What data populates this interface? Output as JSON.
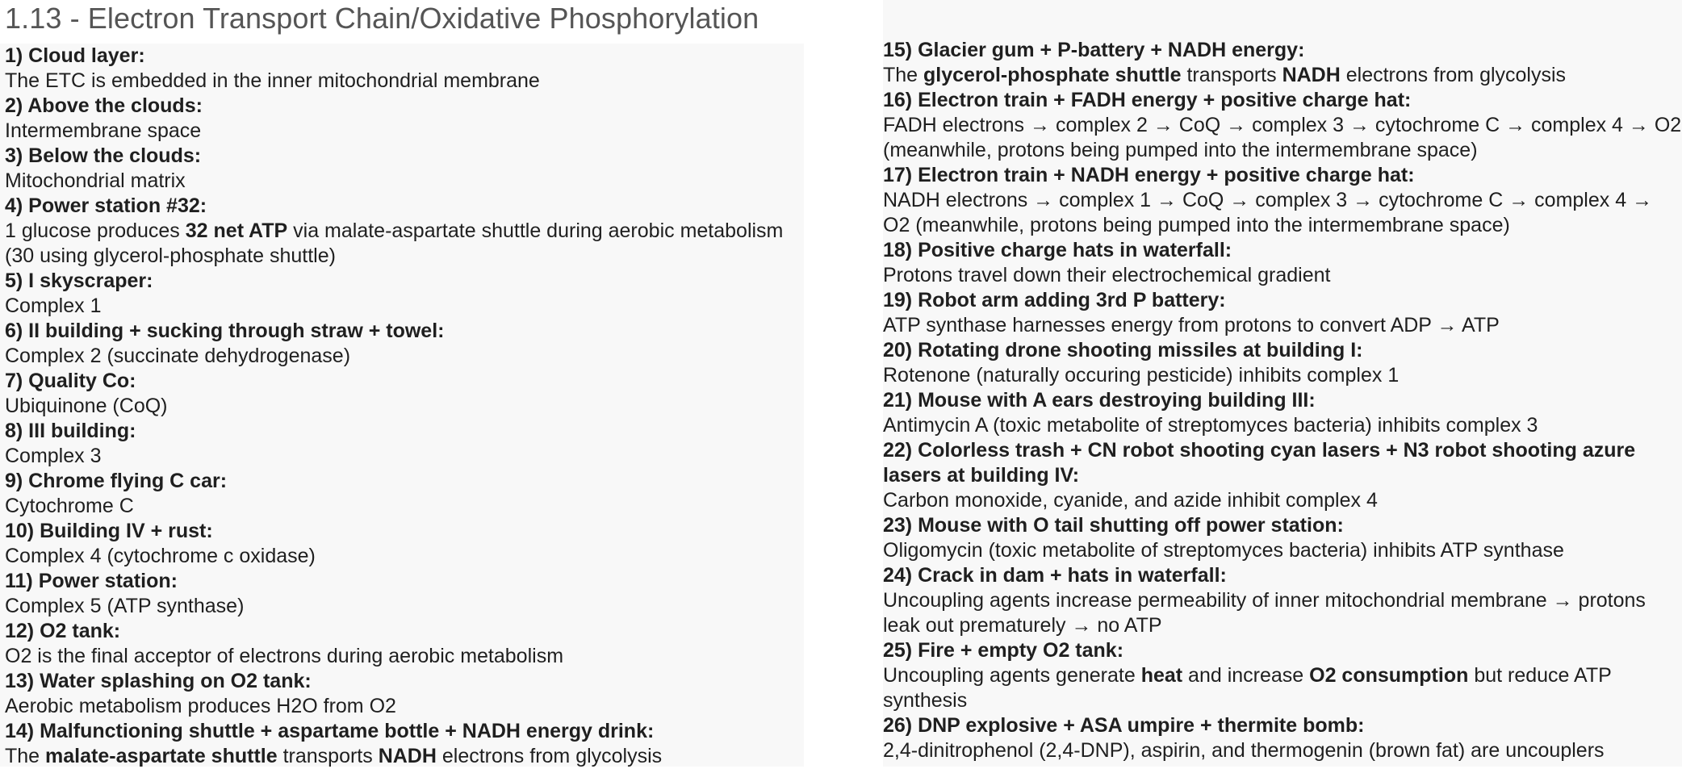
{
  "title": "1.13 - Electron Transport Chain/Oxidative Phosphorylation",
  "left_items": [
    {
      "head": "1) Cloud layer:",
      "body": [
        {
          "t": "The ETC is embedded in the inner mitochondrial membrane"
        }
      ]
    },
    {
      "head": "2) Above the clouds:",
      "body": [
        {
          "t": "Intermembrane space"
        }
      ]
    },
    {
      "head": "3) Below the clouds:",
      "body": [
        {
          "t": "Mitochondrial matrix"
        }
      ]
    },
    {
      "head": "4) Power station #32:",
      "body": [
        {
          "t": "1 glucose produces "
        },
        {
          "t": "32 net ATP",
          "b": true
        },
        {
          "t": " via malate-aspartate shuttle during aerobic metabolism (30 using glycerol-phosphate shuttle)"
        }
      ]
    },
    {
      "head": "5) I skyscraper:",
      "body": [
        {
          "t": "Complex 1"
        }
      ]
    },
    {
      "head": "6) II building + sucking through straw + towel:",
      "body": [
        {
          "t": "Complex 2 (succinate dehydrogenase)"
        }
      ]
    },
    {
      "head": "7) Quality Co:",
      "body": [
        {
          "t": "Ubiquinone (CoQ)"
        }
      ]
    },
    {
      "head": "8) III building:",
      "body": [
        {
          "t": "Complex 3"
        }
      ]
    },
    {
      "head": "9) Chrome flying C car:",
      "body": [
        {
          "t": "Cytochrome C"
        }
      ]
    },
    {
      "head": "10) Building IV + rust:",
      "body": [
        {
          "t": "Complex 4 (cytochrome c oxidase)"
        }
      ]
    },
    {
      "head": "11) Power station:",
      "body": [
        {
          "t": "Complex 5 (ATP synthase)"
        }
      ]
    },
    {
      "head": "12) O2 tank:",
      "body": [
        {
          "t": "O2 is the final acceptor of electrons during aerobic metabolism"
        }
      ]
    },
    {
      "head": "13) Water splashing on O2 tank:",
      "body": [
        {
          "t": "Aerobic metabolism produces H2O from O2"
        }
      ]
    },
    {
      "head": "14) Malfunctioning shuttle + aspartame bottle + NADH energy drink:",
      "body": [
        {
          "t": "The "
        },
        {
          "t": "malate-aspartate shuttle",
          "b": true
        },
        {
          "t": " transports "
        },
        {
          "t": "NADH",
          "b": true
        },
        {
          "t": " electrons from glycolysis"
        }
      ]
    }
  ],
  "right_items": [
    {
      "head": "15) Glacier gum + P-battery + NADH energy:",
      "body": [
        {
          "t": "The "
        },
        {
          "t": "glycerol-phosphate shuttle",
          "b": true
        },
        {
          "t": " transports "
        },
        {
          "t": "NADH",
          "b": true
        },
        {
          "t": " electrons from glycolysis"
        }
      ]
    },
    {
      "head": "16) Electron train + FADH energy + positive charge hat:",
      "body": [
        {
          "t": "FADH electrons → complex 2 → CoQ → complex 3 → cytochrome C → complex 4 → O2 (meanwhile, protons being pumped into the intermembrane space)"
        }
      ]
    },
    {
      "head": "17) Electron train + NADH energy + positive charge hat:",
      "body": [
        {
          "t": "NADH electrons → complex 1 → CoQ → complex 3 → cytochrome C → complex 4 → O2 (meanwhile, protons being pumped into the intermembrane space)"
        }
      ]
    },
    {
      "head": "18) Positive charge hats in waterfall:",
      "body": [
        {
          "t": "Protons travel down their electrochemical gradient"
        }
      ]
    },
    {
      "head": "19) Robot arm adding 3rd P battery:",
      "body": [
        {
          "t": "ATP synthase harnesses energy from protons to convert ADP → ATP"
        }
      ]
    },
    {
      "head": "20) Rotating drone shooting missiles at building I:",
      "body": [
        {
          "t": "Rotenone (naturally occuring pesticide) inhibits complex 1"
        }
      ]
    },
    {
      "head": "21) Mouse with A ears destroying building III:",
      "body": [
        {
          "t": "Antimycin A (toxic metabolite of streptomyces bacteria) inhibits complex 3"
        }
      ]
    },
    {
      "head": "22) Colorless trash + CN robot shooting cyan lasers + N3 robot shooting azure lasers at building IV:",
      "body": [
        {
          "t": "Carbon monoxide, cyanide, and azide inhibit complex 4"
        }
      ]
    },
    {
      "head": "23) Mouse with O tail shutting off power station:",
      "body": [
        {
          "t": "Oligomycin (toxic metabolite of streptomyces bacteria) inhibits ATP synthase"
        }
      ]
    },
    {
      "head": "24) Crack in dam + hats in waterfall:",
      "body": [
        {
          "t": "Uncoupling agents increase permeability of inner mitochondrial membrane → protons leak out prematurely → no ATP"
        }
      ]
    },
    {
      "head": "25) Fire + empty O2 tank:",
      "body": [
        {
          "t": "Uncoupling agents generate "
        },
        {
          "t": "heat",
          "b": true
        },
        {
          "t": " and increase "
        },
        {
          "t": "O2 consumption",
          "b": true
        },
        {
          "t": " but reduce ATP synthesis"
        }
      ]
    },
    {
      "head": "26) DNP explosive + ASA umpire + thermite bomb:",
      "body": [
        {
          "t": "2,4-dinitrophenol (2,4-DNP), aspirin, and thermogenin (brown fat) are uncouplers"
        }
      ]
    }
  ]
}
